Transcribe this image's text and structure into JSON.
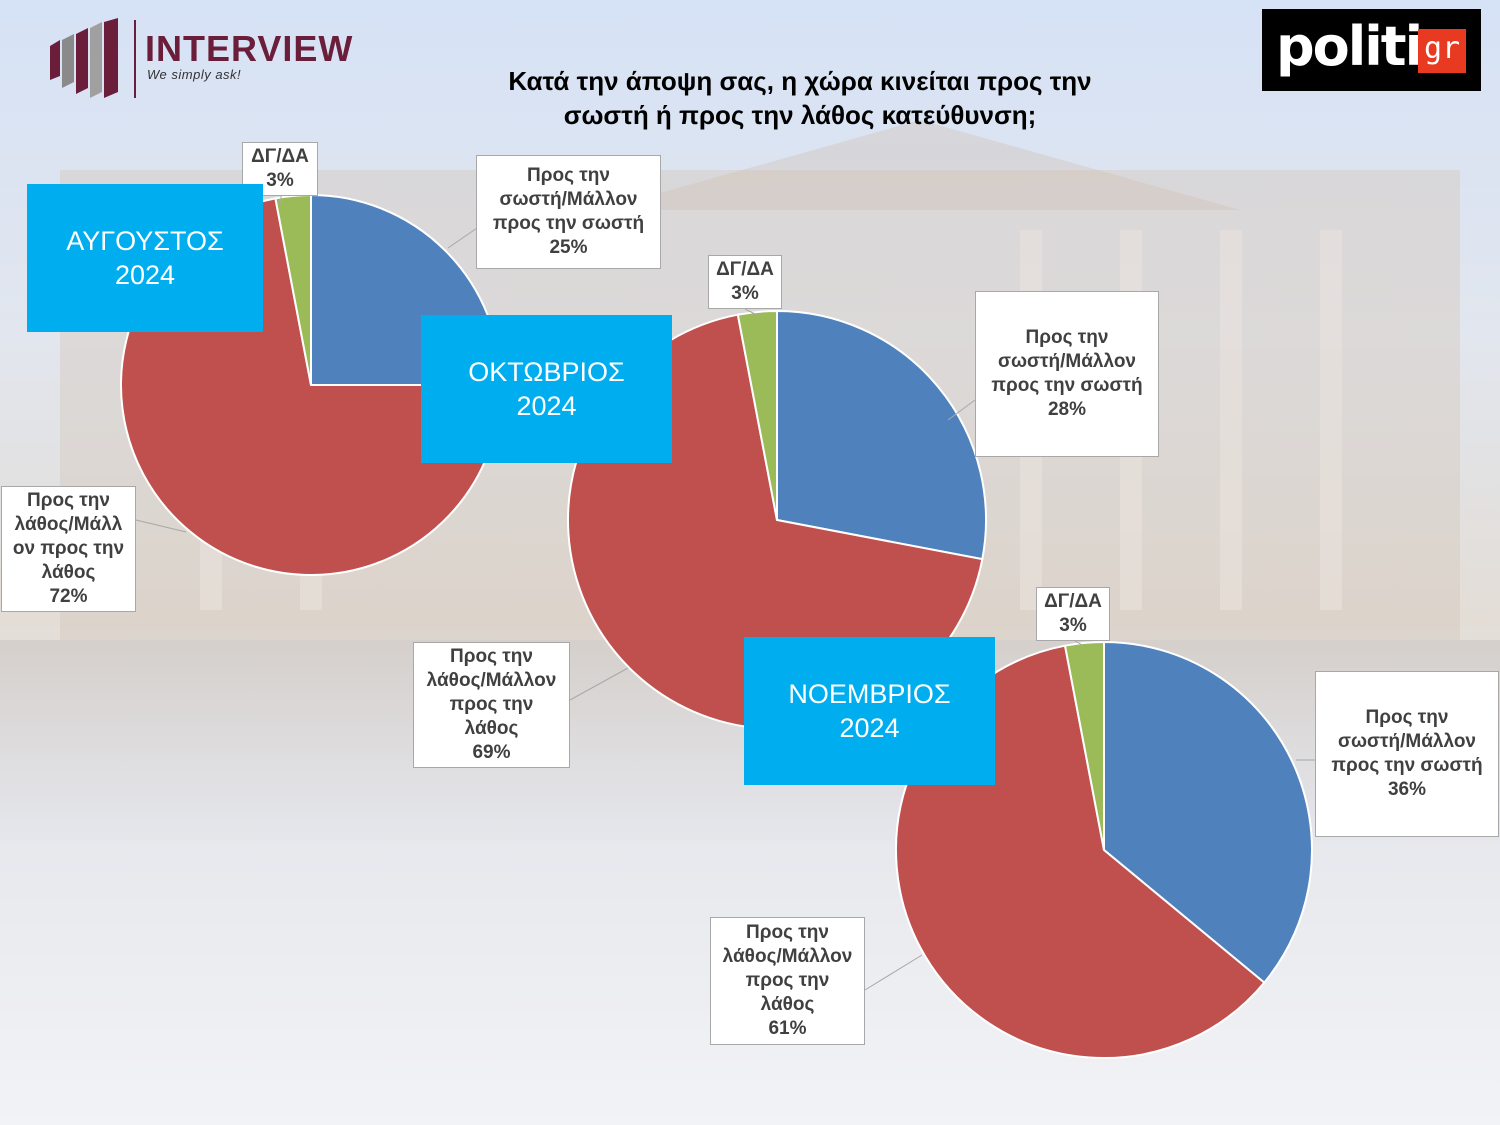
{
  "header": {
    "interview_logo": {
      "name": "INTERVIEW",
      "tagline": "We simply ask!"
    },
    "politic_logo": {
      "word": "politic",
      "suffix": "gr"
    },
    "title_line1": "Κατά την άποψη σας, η χώρα κινείται προς την",
    "title_line2": "σωστή ή προς την λάθος κατεύθυνση;"
  },
  "colors": {
    "right": "#4f81bd",
    "wrong": "#c0504d",
    "dk": "#9bbb59",
    "month_box": "#00aeef"
  },
  "chart_data": [
    {
      "type": "pie",
      "month": "ΑΥΓΟΥΣΤΟΣ",
      "year": "2024",
      "slices": [
        {
          "lines": [
            "Προς την",
            "σωστή/Μάλλον",
            "προς την σωστή"
          ],
          "value_label": "25%",
          "value": 25
        },
        {
          "lines": [
            "Προς την",
            "λάθος/Μάλλ",
            "ον προς την",
            "λάθος"
          ],
          "value_label": "72%",
          "value": 72
        },
        {
          "lines": [
            "ΔΓ/ΔΑ"
          ],
          "value_label": "3%",
          "value": 3
        }
      ]
    },
    {
      "type": "pie",
      "month": "ΟΚΤΩΒΡΙΟΣ",
      "year": "2024",
      "slices": [
        {
          "lines": [
            "Προς την",
            "σωστή/Μάλλον",
            "προς την σωστή"
          ],
          "value_label": "28%",
          "value": 28
        },
        {
          "lines": [
            "Προς την",
            "λάθος/Μάλλον",
            "προς την",
            "λάθος"
          ],
          "value_label": "69%",
          "value": 69
        },
        {
          "lines": [
            "ΔΓ/ΔΑ"
          ],
          "value_label": "3%",
          "value": 3
        }
      ]
    },
    {
      "type": "pie",
      "month": "ΝΟΕΜΒΡΙΟΣ",
      "year": "2024",
      "slices": [
        {
          "lines": [
            "Προς την",
            "σωστή/Μάλλον",
            "προς την σωστή"
          ],
          "value_label": "36%",
          "value": 36
        },
        {
          "lines": [
            "Προς την",
            "λάθος/Μάλλον",
            "προς την",
            "λάθος"
          ],
          "value_label": "61%",
          "value": 61
        },
        {
          "lines": [
            "ΔΓ/ΔΑ"
          ],
          "value_label": "3%",
          "value": 3
        }
      ]
    }
  ]
}
